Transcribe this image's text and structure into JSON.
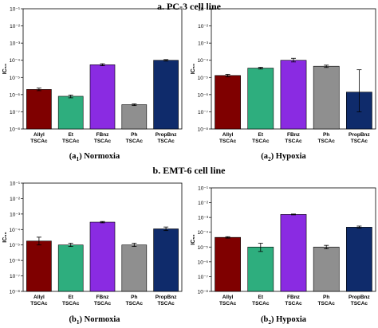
{
  "section_a_title": "a. PC-3 cell line",
  "section_b_title": "b. EMT-6 cell line",
  "y_tick_labels": [
    "10⁻⁸",
    "10⁻⁷",
    "10⁻⁶",
    "10⁻⁵",
    "10⁻⁴",
    "10⁻³",
    "10⁻²",
    "10⁻¹"
  ],
  "chart_data": [
    {
      "type": "bar",
      "caption_prefix": "(a",
      "caption_sub": "1",
      "caption_suffix": ") Normoxia",
      "ylabel": "IC₅₀",
      "log_scale": true,
      "ylim": [
        1e-08,
        0.1
      ],
      "categories": [
        [
          "Allyl",
          "TSCAc"
        ],
        [
          "Et",
          "TSCAc"
        ],
        [
          "FBnz",
          "TSCAc"
        ],
        [
          "Ph",
          "TSCAc"
        ],
        [
          "PropBnz",
          "TSCAc"
        ]
      ],
      "colors": [
        "#7f0000",
        "#2eae7e",
        "#8a2be2",
        "#8f8f8f",
        "#0f2b6b"
      ],
      "values": [
        2e-06,
        8e-07,
        5.5e-05,
        2.6e-07,
        0.0001
      ],
      "errors": [
        [
          1.7e-06,
          2.4e-06
        ],
        [
          6.5e-07,
          9.5e-07
        ],
        [
          4.8e-05,
          6.3e-05
        ],
        [
          2.3e-07,
          2.9e-07
        ],
        [
          9e-05,
          0.00011
        ]
      ]
    },
    {
      "type": "bar",
      "caption_prefix": "(a",
      "caption_sub": "2",
      "caption_suffix": ") Hypoxia",
      "ylabel": "IC₅₀",
      "log_scale": true,
      "ylim": [
        1e-08,
        0.1
      ],
      "categories": [
        [
          "Allyl",
          "TSCAc"
        ],
        [
          "Et",
          "TSCAc"
        ],
        [
          "FBnz",
          "TSCAc"
        ],
        [
          "Ph",
          "TSCAc"
        ],
        [
          "PropBnz",
          "TSCAc"
        ]
      ],
      "colors": [
        "#7f0000",
        "#2eae7e",
        "#8a2be2",
        "#8f8f8f",
        "#0f2b6b"
      ],
      "values": [
        1.3e-05,
        3.5e-05,
        0.0001,
        4.5e-05,
        1.4e-06
      ],
      "errors": [
        [
          1.1e-05,
          1.5e-05
        ],
        [
          3.1e-05,
          3.9e-05
        ],
        [
          8e-05,
          0.00013
        ],
        [
          3.8e-05,
          5.2e-05
        ],
        [
          1e-07,
          2.8e-05
        ]
      ]
    },
    {
      "type": "bar",
      "caption_prefix": "(b",
      "caption_sub": "1",
      "caption_suffix": ") Normoxia",
      "ylabel": "IC₅₀",
      "log_scale": true,
      "ylim": [
        1e-08,
        0.1
      ],
      "categories": [
        [
          "Allyl",
          "TSCAc"
        ],
        [
          "Et",
          "TSCAc"
        ],
        [
          "FBnz",
          "TSCAc"
        ],
        [
          "Ph",
          "TSCAc"
        ],
        [
          "PropBnz",
          "TSCAc"
        ]
      ],
      "colors": [
        "#7f0000",
        "#2eae7e",
        "#8a2be2",
        "#8f8f8f",
        "#0f2b6b"
      ],
      "values": [
        1.8e-05,
        1e-05,
        0.0003,
        1e-05,
        0.00011
      ],
      "errors": [
        [
          1e-05,
          3.2e-05
        ],
        [
          8e-06,
          1.3e-05
        ],
        [
          0.00027,
          0.00033
        ],
        [
          8e-06,
          1.3e-05
        ],
        [
          8.5e-05,
          0.000145
        ]
      ]
    },
    {
      "type": "bar",
      "caption_prefix": "(b",
      "caption_sub": "2",
      "caption_suffix": ") Hypoxia",
      "ylabel": "IC₅₀",
      "log_scale": true,
      "ylim": [
        1e-08,
        0.1
      ],
      "categories": [
        [
          "Allyl",
          "TSCAc"
        ],
        [
          "Et",
          "TSCAc"
        ],
        [
          "FBnz",
          "TSCAc"
        ],
        [
          "Ph",
          "TSCAc"
        ],
        [
          "PropBnz",
          "TSCAc"
        ]
      ],
      "colors": [
        "#7f0000",
        "#2eae7e",
        "#8a2be2",
        "#8f8f8f",
        "#0f2b6b"
      ],
      "values": [
        4.5e-05,
        1e-05,
        0.0016,
        1e-05,
        0.00022
      ],
      "errors": [
        [
          4e-05,
          5e-05
        ],
        [
          5e-06,
          1.8e-05
        ],
        [
          0.0015,
          0.0017
        ],
        [
          7.5e-06,
          1.3e-05
        ],
        [
          0.00019,
          0.00026
        ]
      ]
    }
  ]
}
